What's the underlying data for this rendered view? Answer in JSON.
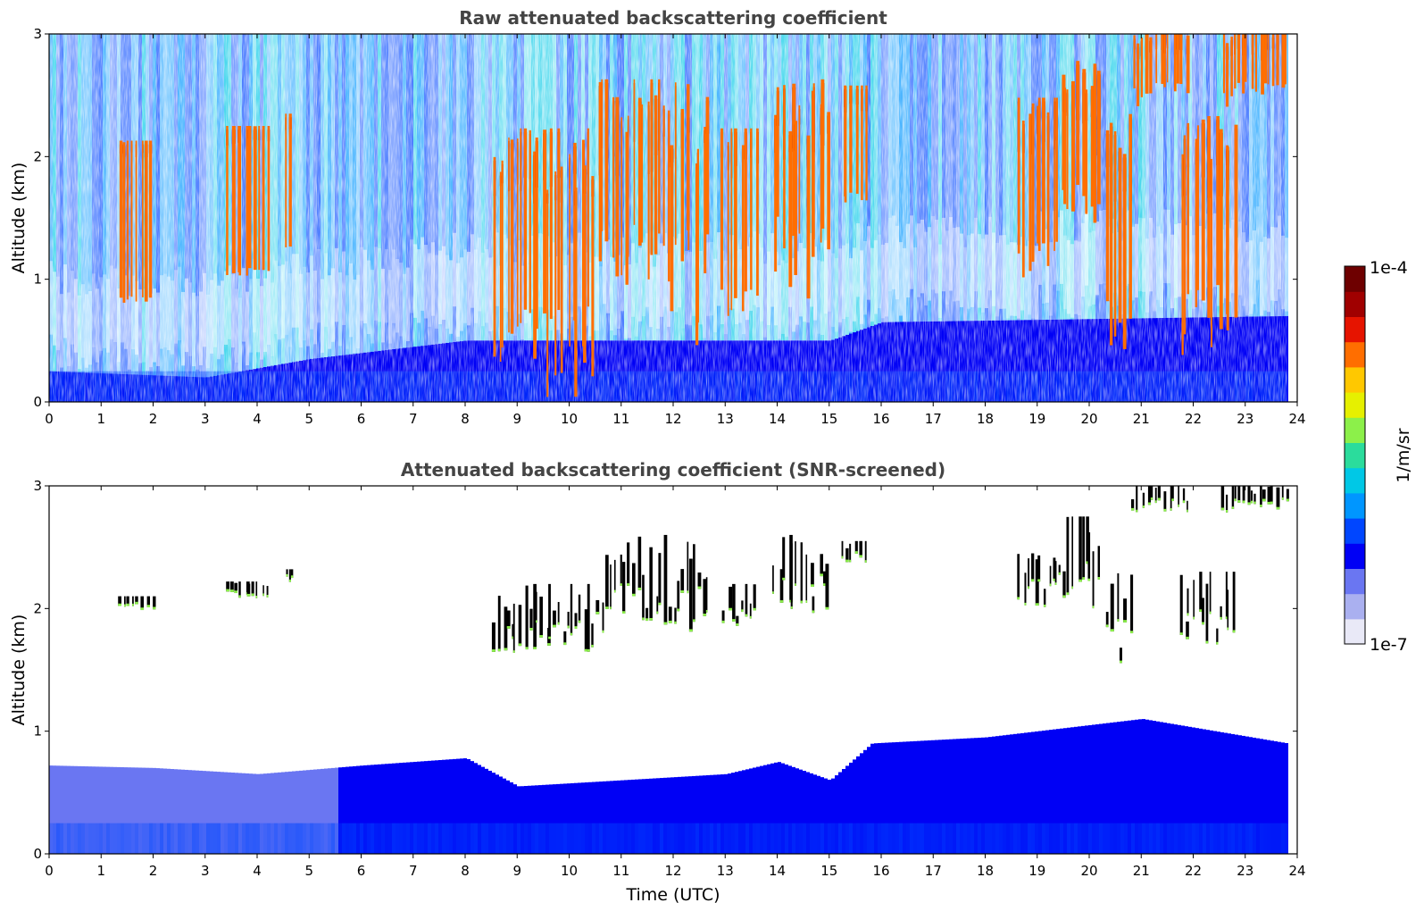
{
  "colors": {
    "colormap": [
      "#e9e9f7",
      "#aab0f0",
      "#6a76f2",
      "#0000f5",
      "#0046ff",
      "#0096ff",
      "#00c8e6",
      "#2bdc9c",
      "#8cf04a",
      "#e6f000",
      "#ffc800",
      "#ff6e00",
      "#e61400",
      "#a00000",
      "#6e0000"
    ],
    "clipped_high": "#000000"
  },
  "colorbar": {
    "min_label": "1e-7",
    "max_label": "1e-4",
    "label": "1/m/sr",
    "scale": "log"
  },
  "chart_data": [
    {
      "type": "heatmap",
      "title": "Raw attenuated backscattering coefficient",
      "xlabel": "",
      "ylabel": "Altitude (km)",
      "xlim": [
        0,
        24
      ],
      "ylim": [
        0,
        3
      ],
      "x_ticks": [
        "0",
        "1",
        "2",
        "3",
        "4",
        "5",
        "6",
        "7",
        "8",
        "9",
        "10",
        "11",
        "12",
        "13",
        "14",
        "15",
        "16",
        "17",
        "18",
        "19",
        "20",
        "21",
        "22",
        "23",
        "24"
      ],
      "y_ticks": [
        "0",
        "1",
        "2",
        "3"
      ],
      "data_end_time": 23.8,
      "boundary_layer_top_km": [
        [
          0,
          0.25
        ],
        [
          3,
          0.2
        ],
        [
          5,
          0.35
        ],
        [
          8,
          0.5
        ],
        [
          15,
          0.5
        ],
        [
          16,
          0.65
        ],
        [
          23.8,
          0.7
        ]
      ],
      "noise": "strong above boundary layer, increasing with altitude and during daytime (8-16 UTC)",
      "cloud_layers": [
        {
          "t0": 1.3,
          "t1": 2.0,
          "base_km": 1.98,
          "top_km": 2.1
        },
        {
          "t0": 3.4,
          "t1": 4.2,
          "base_km": 2.08,
          "top_km": 2.22
        },
        {
          "t0": 4.5,
          "t1": 4.7,
          "base_km": 2.2,
          "top_km": 2.32
        },
        {
          "t0": 8.5,
          "t1": 10.5,
          "base_km": 1.6,
          "top_km": 2.2
        },
        {
          "t0": 10.5,
          "t1": 12.7,
          "base_km": 1.8,
          "top_km": 2.6
        },
        {
          "t0": 12.9,
          "t1": 13.6,
          "base_km": 1.8,
          "top_km": 2.2
        },
        {
          "t0": 13.9,
          "t1": 15.0,
          "base_km": 1.95,
          "top_km": 2.6
        },
        {
          "t0": 15.2,
          "t1": 15.7,
          "base_km": 2.35,
          "top_km": 2.55
        },
        {
          "t0": 18.6,
          "t1": 19.4,
          "base_km": 2.0,
          "top_km": 2.45
        },
        {
          "t0": 19.4,
          "t1": 20.2,
          "base_km": 2.0,
          "top_km": 2.75
        },
        {
          "t0": 20.3,
          "t1": 20.8,
          "base_km": 1.45,
          "top_km": 2.4
        },
        {
          "t0": 20.8,
          "t1": 21.9,
          "base_km": 2.78,
          "top_km": 3.0
        },
        {
          "t0": 21.7,
          "t1": 22.8,
          "base_km": 1.65,
          "top_km": 2.3
        },
        {
          "t0": 22.5,
          "t1": 23.8,
          "base_km": 2.78,
          "top_km": 3.0
        }
      ]
    },
    {
      "type": "heatmap",
      "title": "Attenuated backscattering coefficient (SNR-screened)",
      "xlabel": "Time (UTC)",
      "ylabel": "Altitude (km)",
      "xlim": [
        0,
        24
      ],
      "ylim": [
        0,
        3
      ],
      "x_ticks": [
        "0",
        "1",
        "2",
        "3",
        "4",
        "5",
        "6",
        "7",
        "8",
        "9",
        "10",
        "11",
        "12",
        "13",
        "14",
        "15",
        "16",
        "17",
        "18",
        "19",
        "20",
        "21",
        "22",
        "23",
        "24"
      ],
      "y_ticks": [
        "0",
        "1",
        "2",
        "3"
      ],
      "data_end_time": 23.8,
      "boundary_layer_top_km": [
        [
          0,
          0.72
        ],
        [
          2,
          0.7
        ],
        [
          4,
          0.65
        ],
        [
          6,
          0.72
        ],
        [
          8,
          0.78
        ],
        [
          9,
          0.55
        ],
        [
          11,
          0.6
        ],
        [
          13,
          0.65
        ],
        [
          14,
          0.75
        ],
        [
          15,
          0.6
        ],
        [
          15.8,
          0.9
        ],
        [
          18,
          0.95
        ],
        [
          19,
          1.0
        ],
        [
          21,
          1.1
        ],
        [
          23.8,
          0.9
        ]
      ],
      "noise": "screened: only signal above SNR threshold retained; clouds saturate to black",
      "cloud_layers": "same as raw panel"
    }
  ]
}
